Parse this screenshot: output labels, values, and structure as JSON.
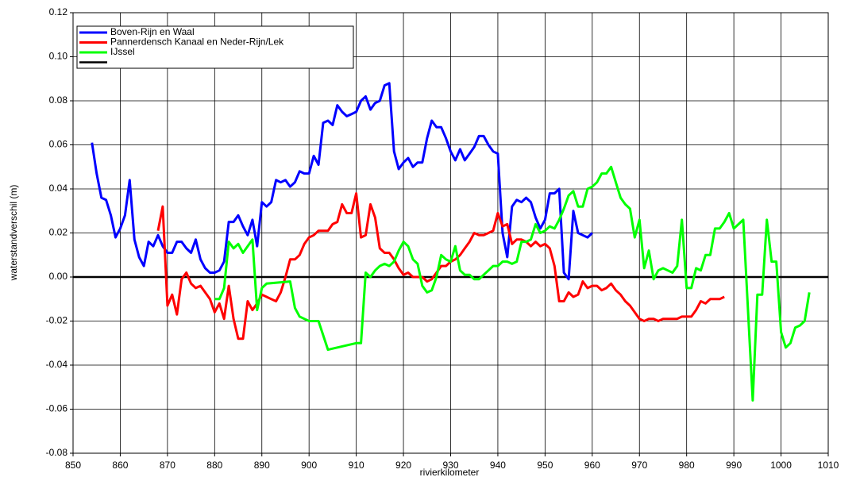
{
  "chart_data": {
    "type": "line",
    "xlabel": "rivierkilometer",
    "ylabel": "waterstandverschil (m)",
    "xlim": [
      850,
      1010
    ],
    "xticks": [
      850,
      860,
      870,
      880,
      890,
      900,
      910,
      920,
      930,
      940,
      950,
      960,
      970,
      980,
      990,
      1000,
      1010
    ],
    "ylim": [
      -0.08,
      0.12
    ],
    "yticks": [
      {
        "value": -0.08,
        "label": "-0.08"
      },
      {
        "value": -0.06,
        "label": "-0.06"
      },
      {
        "value": -0.04,
        "label": "-0.04"
      },
      {
        "value": -0.02,
        "label": "-0.02"
      },
      {
        "value": 0,
        "label": "0.00"
      },
      {
        "value": 0.02,
        "label": "0.02"
      },
      {
        "value": 0.04,
        "label": "0.04"
      },
      {
        "value": 0.06,
        "label": "0.06"
      },
      {
        "value": 0.08,
        "label": "0.08"
      },
      {
        "value": 0.1,
        "label": "0.10"
      },
      {
        "value": 0.12,
        "label": "0.12"
      }
    ],
    "grid": true,
    "zero_line": true,
    "legend": "upper left",
    "series": [
      {
        "name": "Boven-Rijn en Waal",
        "color": "#0000ff",
        "x": [
          854,
          855,
          856,
          857,
          858,
          859,
          860,
          861,
          862,
          863,
          864,
          865,
          866,
          867,
          868,
          869,
          870,
          871,
          872,
          873,
          874,
          875,
          876,
          877,
          878,
          879,
          880,
          881,
          882,
          883,
          884,
          885,
          886,
          887,
          888,
          889,
          890,
          891,
          892,
          893,
          894,
          895,
          896,
          897,
          898,
          899,
          900,
          901,
          902,
          903,
          904,
          905,
          906,
          907,
          908,
          909,
          910,
          911,
          912,
          913,
          914,
          915,
          916,
          917,
          918,
          919,
          920,
          921,
          922,
          923,
          924,
          925,
          926,
          927,
          928,
          929,
          930,
          931,
          932,
          933,
          934,
          935,
          936,
          937,
          938,
          939,
          940,
          941,
          942,
          943,
          944,
          945,
          946,
          947,
          948,
          949,
          950,
          951,
          952,
          953,
          954,
          955,
          956,
          957,
          958,
          959,
          960
        ],
        "values": [
          0.061,
          0.047,
          0.036,
          0.035,
          0.028,
          0.018,
          0.022,
          0.028,
          0.044,
          0.017,
          0.009,
          0.005,
          0.016,
          0.014,
          0.019,
          0.014,
          0.011,
          0.011,
          0.016,
          0.016,
          0.013,
          0.011,
          0.017,
          0.008,
          0.004,
          0.002,
          0.002,
          0.003,
          0.007,
          0.025,
          0.025,
          0.028,
          0.023,
          0.019,
          0.026,
          0.014,
          0.034,
          0.032,
          0.034,
          0.044,
          0.043,
          0.044,
          0.041,
          0.043,
          0.048,
          0.047,
          0.047,
          0.055,
          0.051,
          0.07,
          0.071,
          0.069,
          0.078,
          0.075,
          0.073,
          0.074,
          0.075,
          0.08,
          0.082,
          0.076,
          0.079,
          0.08,
          0.087,
          0.088,
          0.057,
          0.049,
          0.052,
          0.054,
          0.05,
          0.052,
          0.052,
          0.063,
          0.071,
          0.068,
          0.068,
          0.063,
          0.057,
          0.053,
          0.058,
          0.053,
          0.056,
          0.059,
          0.064,
          0.064,
          0.06,
          0.057,
          0.056,
          0.02,
          0.009,
          0.032,
          0.035,
          0.034,
          0.036,
          0.034,
          0.027,
          0.022,
          0.026,
          0.038,
          0.038,
          0.04,
          0.002,
          -0.001,
          0.03,
          0.02,
          0.019,
          0.018,
          0.02
        ]
      },
      {
        "name": "Pannerdensch Kanaal en Neder-Rijn/Lek",
        "color": "#ff0000",
        "x": [
          868,
          869,
          870,
          871,
          872,
          873,
          874,
          875,
          876,
          877,
          878,
          879,
          880,
          881,
          882,
          883,
          884,
          885,
          886,
          887,
          888,
          889,
          890,
          891,
          892,
          893,
          894,
          895,
          896,
          897,
          898,
          899,
          900,
          901,
          902,
          903,
          904,
          905,
          906,
          907,
          908,
          909,
          910,
          911,
          912,
          913,
          914,
          915,
          916,
          917,
          918,
          919,
          920,
          921,
          922,
          923,
          924,
          925,
          926,
          927,
          928,
          929,
          930,
          931,
          932,
          933,
          934,
          935,
          936,
          937,
          938,
          939,
          940,
          941,
          942,
          943,
          944,
          945,
          946,
          947,
          948,
          949,
          950,
          951,
          952,
          953,
          954,
          955,
          956,
          957,
          958,
          959,
          960,
          961,
          962,
          963,
          964,
          965,
          966,
          967,
          968,
          969,
          970,
          971,
          972,
          973,
          974,
          975,
          976,
          977,
          978,
          979,
          980,
          981,
          982,
          983,
          984,
          985,
          986,
          987,
          988
        ],
        "values": [
          0.021,
          0.032,
          -0.013,
          -0.008,
          -0.017,
          -0.001,
          0.002,
          -0.003,
          -0.005,
          -0.004,
          -0.007,
          -0.01,
          -0.016,
          -0.012,
          -0.019,
          -0.004,
          -0.019,
          -0.028,
          -0.028,
          -0.011,
          -0.015,
          -0.012,
          -0.008,
          -0.009,
          -0.01,
          -0.011,
          -0.007,
          0.0,
          0.008,
          0.008,
          0.01,
          0.015,
          0.018,
          0.019,
          0.021,
          0.021,
          0.021,
          0.024,
          0.025,
          0.033,
          0.029,
          0.029,
          0.038,
          0.018,
          0.019,
          0.033,
          0.027,
          0.013,
          0.011,
          0.011,
          0.008,
          0.004,
          0.001,
          0.002,
          0.0,
          0.0,
          0.0,
          -0.002,
          -0.001,
          0.002,
          0.005,
          0.005,
          0.007,
          0.008,
          0.01,
          0.013,
          0.016,
          0.02,
          0.019,
          0.019,
          0.02,
          0.021,
          0.029,
          0.023,
          0.024,
          0.015,
          0.017,
          0.017,
          0.016,
          0.014,
          0.016,
          0.014,
          0.015,
          0.013,
          0.005,
          -0.011,
          -0.011,
          -0.007,
          -0.009,
          -0.008,
          -0.002,
          -0.005,
          -0.004,
          -0.004,
          -0.006,
          -0.005,
          -0.003,
          -0.006,
          -0.008,
          -0.011,
          -0.013,
          -0.016,
          -0.019,
          -0.02,
          -0.019,
          -0.019,
          -0.02,
          -0.019,
          -0.019,
          -0.019,
          -0.019,
          -0.018,
          -0.018,
          -0.018,
          -0.015,
          -0.011,
          -0.012,
          -0.01,
          -0.01,
          -0.01,
          -0.009
        ]
      },
      {
        "name": "IJssel",
        "color": "#00ff00",
        "x": [
          880,
          881,
          882,
          883,
          884,
          885,
          886,
          887,
          888,
          889,
          890,
          891,
          896,
          897,
          898,
          899,
          900,
          902,
          904,
          910,
          911,
          912,
          913,
          914,
          915,
          916,
          917,
          918,
          919,
          920,
          921,
          922,
          923,
          924,
          925,
          926,
          927,
          928,
          929,
          930,
          931,
          932,
          933,
          934,
          935,
          936,
          937,
          938,
          939,
          940,
          941,
          942,
          943,
          944,
          945,
          946,
          947,
          948,
          949,
          950,
          951,
          952,
          953,
          954,
          955,
          956,
          957,
          958,
          959,
          960,
          961,
          962,
          963,
          964,
          965,
          966,
          967,
          968,
          969,
          970,
          971,
          972,
          973,
          974,
          975,
          976,
          977,
          978,
          979,
          980,
          981,
          982,
          983,
          984,
          985,
          986,
          987,
          988,
          989,
          990,
          992,
          994,
          995,
          996,
          997,
          998,
          999,
          1000,
          1001,
          1002,
          1003,
          1004,
          1005,
          1006
        ],
        "values": [
          -0.01,
          -0.01,
          -0.005,
          0.016,
          0.013,
          0.015,
          0.011,
          0.014,
          0.017,
          -0.015,
          -0.005,
          -0.003,
          -0.002,
          -0.014,
          -0.018,
          -0.019,
          -0.02,
          -0.02,
          -0.033,
          -0.03,
          -0.03,
          0.002,
          0.0,
          0.003,
          0.005,
          0.006,
          0.005,
          0.007,
          0.012,
          0.016,
          0.014,
          0.008,
          0.006,
          -0.004,
          -0.007,
          -0.006,
          0.0,
          0.01,
          0.008,
          0.007,
          0.014,
          0.003,
          0.001,
          0.001,
          -0.001,
          -0.001,
          0.001,
          0.003,
          0.005,
          0.005,
          0.007,
          0.007,
          0.006,
          0.007,
          0.016,
          0.016,
          0.017,
          0.024,
          0.02,
          0.021,
          0.023,
          0.022,
          0.026,
          0.031,
          0.037,
          0.039,
          0.032,
          0.032,
          0.04,
          0.041,
          0.043,
          0.047,
          0.047,
          0.05,
          0.043,
          0.036,
          0.033,
          0.031,
          0.018,
          0.026,
          0.004,
          0.012,
          -0.001,
          0.003,
          0.004,
          0.003,
          0.002,
          0.005,
          0.026,
          -0.005,
          -0.005,
          0.004,
          0.003,
          0.01,
          0.01,
          0.022,
          0.022,
          0.025,
          0.029,
          0.022,
          0.026,
          -0.056,
          -0.008,
          -0.008,
          0.026,
          0.007,
          0.007,
          -0.025,
          -0.032,
          -0.03,
          -0.023,
          -0.022,
          -0.02,
          -0.007
        ]
      }
    ]
  }
}
